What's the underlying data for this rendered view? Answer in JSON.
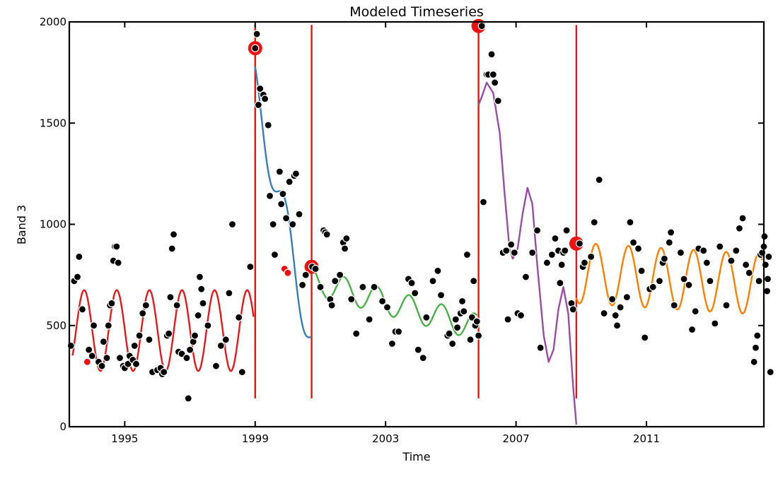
{
  "chart_data": {
    "type": "scatter",
    "title": "Modeled Timeseries",
    "xlabel": "Time",
    "ylabel": "Band 3",
    "xlim": [
      1993.3,
      2014.6
    ],
    "ylim": [
      0,
      2000
    ],
    "xticks": [
      1995,
      1999,
      2003,
      2007,
      2011
    ],
    "xtick_labels": [
      "1995",
      "1999",
      "2003",
      "2007",
      "2011"
    ],
    "yticks": [
      0,
      500,
      1000,
      1500,
      2000
    ],
    "ytick_labels": [
      "0",
      "500",
      "1000",
      "1500",
      "2000"
    ],
    "breaks": [
      {
        "x": 1999.0,
        "y": 1870
      },
      {
        "x": 2000.73,
        "y": 790
      },
      {
        "x": 2005.85,
        "y": 1980
      },
      {
        "x": 2008.85,
        "y": 905
      }
    ],
    "break_line_ymin": 140,
    "break_line_ymax": 1985,
    "outliers": [
      [
        1993.85,
        320
      ],
      [
        1999.9,
        780
      ],
      [
        2000.0,
        760
      ]
    ],
    "segments": [
      {
        "color": "#e41a1c",
        "start": 1993.4,
        "end": 1998.95,
        "model": "harmonic",
        "base": 475,
        "slope": 0,
        "amp": 200,
        "phase": 5.62
      },
      {
        "color": "#377eb8",
        "start": 1999.0,
        "end": 2000.7,
        "model": "harmonic",
        "base": 1665,
        "slope": -720,
        "amp": 120,
        "phase": 1.9
      },
      {
        "color": "#4daf4a",
        "start": 2000.73,
        "end": 2005.8,
        "model": "harmonic",
        "base": 720,
        "slope": -45,
        "amp": 65,
        "phase": 1.6
      },
      {
        "color": "#984ea3",
        "start": 2005.85,
        "end": 2008.4,
        "model": "polyline",
        "points": [
          [
            2005.85,
            1590
          ],
          [
            2005.95,
            1630
          ],
          [
            2006.1,
            1700
          ],
          [
            2006.3,
            1650
          ],
          [
            2006.5,
            1450
          ],
          [
            2006.65,
            1150
          ],
          [
            2006.8,
            880
          ],
          [
            2006.9,
            830
          ],
          [
            2007.05,
            880
          ],
          [
            2007.2,
            1050
          ],
          [
            2007.35,
            1180
          ],
          [
            2007.5,
            1100
          ],
          [
            2007.65,
            800
          ],
          [
            2007.85,
            450
          ],
          [
            2008.0,
            320
          ],
          [
            2008.15,
            380
          ],
          [
            2008.3,
            580
          ],
          [
            2008.45,
            690
          ],
          [
            2008.6,
            560
          ],
          [
            2008.75,
            200
          ],
          [
            2008.85,
            10
          ]
        ]
      },
      {
        "color": "#ff7f00",
        "start": 2008.85,
        "end": 2014.55,
        "model": "harmonic",
        "base": 760,
        "slope": -10,
        "amp": 150,
        "phase": 4.1
      }
    ],
    "points": [
      [
        1993.35,
        400
      ],
      [
        1993.45,
        720
      ],
      [
        1993.55,
        740
      ],
      [
        1993.6,
        840
      ],
      [
        1993.7,
        580
      ],
      [
        1993.9,
        380
      ],
      [
        1994.0,
        350
      ],
      [
        1994.05,
        500
      ],
      [
        1994.2,
        320
      ],
      [
        1994.3,
        300
      ],
      [
        1994.35,
        420
      ],
      [
        1994.45,
        340
      ],
      [
        1994.5,
        500
      ],
      [
        1994.55,
        600
      ],
      [
        1994.6,
        610
      ],
      [
        1994.65,
        820
      ],
      [
        1994.7,
        890
      ],
      [
        1994.75,
        890
      ],
      [
        1994.8,
        810
      ],
      [
        1994.85,
        340
      ],
      [
        1994.95,
        300
      ],
      [
        1995.0,
        290
      ],
      [
        1995.1,
        310
      ],
      [
        1995.15,
        350
      ],
      [
        1995.25,
        330
      ],
      [
        1995.3,
        400
      ],
      [
        1995.35,
        310
      ],
      [
        1995.45,
        450
      ],
      [
        1995.55,
        560
      ],
      [
        1995.65,
        600
      ],
      [
        1995.75,
        430
      ],
      [
        1995.85,
        270
      ],
      [
        1996.0,
        280
      ],
      [
        1996.1,
        290
      ],
      [
        1996.15,
        260
      ],
      [
        1996.2,
        270
      ],
      [
        1996.3,
        450
      ],
      [
        1996.35,
        460
      ],
      [
        1996.4,
        640
      ],
      [
        1996.45,
        880
      ],
      [
        1996.5,
        950
      ],
      [
        1996.6,
        600
      ],
      [
        1996.65,
        370
      ],
      [
        1996.75,
        360
      ],
      [
        1996.9,
        340
      ],
      [
        1996.95,
        140
      ],
      [
        1997.0,
        380
      ],
      [
        1997.1,
        420
      ],
      [
        1997.15,
        450
      ],
      [
        1997.25,
        550
      ],
      [
        1997.3,
        740
      ],
      [
        1997.35,
        680
      ],
      [
        1997.4,
        610
      ],
      [
        1997.55,
        500
      ],
      [
        1997.8,
        300
      ],
      [
        1997.95,
        400
      ],
      [
        1998.1,
        430
      ],
      [
        1998.2,
        660
      ],
      [
        1998.3,
        1000
      ],
      [
        1998.5,
        540
      ],
      [
        1998.6,
        270
      ],
      [
        1998.85,
        790
      ],
      [
        1999.0,
        1870
      ],
      [
        1999.05,
        1940
      ],
      [
        1999.1,
        1590
      ],
      [
        1999.15,
        1670
      ],
      [
        1999.25,
        1640
      ],
      [
        1999.3,
        1620
      ],
      [
        1999.4,
        1490
      ],
      [
        1999.45,
        1140
      ],
      [
        1999.55,
        1000
      ],
      [
        1999.6,
        850
      ],
      [
        1999.75,
        1260
      ],
      [
        1999.8,
        1100
      ],
      [
        1999.85,
        1150
      ],
      [
        1999.95,
        1030
      ],
      [
        2000.05,
        1210
      ],
      [
        2000.15,
        1000
      ],
      [
        2000.2,
        1240
      ],
      [
        2000.25,
        1250
      ],
      [
        2000.35,
        1050
      ],
      [
        2000.45,
        700
      ],
      [
        2000.55,
        750
      ],
      [
        2000.75,
        790
      ],
      [
        2000.85,
        780
      ],
      [
        2001.0,
        690
      ],
      [
        2001.1,
        970
      ],
      [
        2001.15,
        960
      ],
      [
        2001.2,
        950
      ],
      [
        2001.3,
        630
      ],
      [
        2001.35,
        600
      ],
      [
        2001.45,
        720
      ],
      [
        2001.6,
        750
      ],
      [
        2001.7,
        910
      ],
      [
        2001.75,
        880
      ],
      [
        2001.8,
        930
      ],
      [
        2001.95,
        630
      ],
      [
        2002.1,
        460
      ],
      [
        2002.3,
        690
      ],
      [
        2002.5,
        530
      ],
      [
        2002.65,
        690
      ],
      [
        2002.9,
        620
      ],
      [
        2003.05,
        590
      ],
      [
        2003.2,
        410
      ],
      [
        2003.3,
        470
      ],
      [
        2003.4,
        470
      ],
      [
        2003.7,
        730
      ],
      [
        2003.8,
        710
      ],
      [
        2003.9,
        660
      ],
      [
        2004.0,
        380
      ],
      [
        2004.15,
        340
      ],
      [
        2004.25,
        540
      ],
      [
        2004.45,
        720
      ],
      [
        2004.6,
        770
      ],
      [
        2004.7,
        650
      ],
      [
        2004.9,
        450
      ],
      [
        2004.95,
        460
      ],
      [
        2005.05,
        410
      ],
      [
        2005.15,
        530
      ],
      [
        2005.2,
        490
      ],
      [
        2005.3,
        560
      ],
      [
        2005.35,
        620
      ],
      [
        2005.4,
        570
      ],
      [
        2005.5,
        850
      ],
      [
        2005.6,
        430
      ],
      [
        2005.65,
        540
      ],
      [
        2005.7,
        720
      ],
      [
        2005.75,
        500
      ],
      [
        2005.8,
        520
      ],
      [
        2005.85,
        450
      ],
      [
        2005.95,
        1980
      ],
      [
        2006.0,
        1110
      ],
      [
        2006.1,
        1740
      ],
      [
        2006.15,
        1740
      ],
      [
        2006.25,
        1840
      ],
      [
        2006.3,
        1740
      ],
      [
        2006.35,
        1700
      ],
      [
        2006.45,
        1610
      ],
      [
        2006.6,
        860
      ],
      [
        2006.7,
        870
      ],
      [
        2006.75,
        530
      ],
      [
        2006.85,
        900
      ],
      [
        2006.95,
        860
      ],
      [
        2007.05,
        560
      ],
      [
        2007.15,
        550
      ],
      [
        2007.3,
        740
      ],
      [
        2007.5,
        860
      ],
      [
        2007.65,
        970
      ],
      [
        2007.75,
        390
      ],
      [
        2007.95,
        810
      ],
      [
        2008.1,
        850
      ],
      [
        2008.2,
        930
      ],
      [
        2008.3,
        870
      ],
      [
        2008.35,
        710
      ],
      [
        2008.4,
        800
      ],
      [
        2008.45,
        860
      ],
      [
        2008.5,
        870
      ],
      [
        2008.55,
        970
      ],
      [
        2008.7,
        610
      ],
      [
        2008.75,
        580
      ],
      [
        2008.95,
        905
      ],
      [
        2009.05,
        790
      ],
      [
        2009.1,
        810
      ],
      [
        2009.3,
        840
      ],
      [
        2009.4,
        1010
      ],
      [
        2009.55,
        1220
      ],
      [
        2009.7,
        560
      ],
      [
        2009.95,
        630
      ],
      [
        2010.05,
        550
      ],
      [
        2010.1,
        500
      ],
      [
        2010.2,
        590
      ],
      [
        2010.4,
        640
      ],
      [
        2010.5,
        1010
      ],
      [
        2010.6,
        910
      ],
      [
        2010.75,
        880
      ],
      [
        2010.85,
        770
      ],
      [
        2010.95,
        440
      ],
      [
        2011.1,
        680
      ],
      [
        2011.2,
        690
      ],
      [
        2011.4,
        720
      ],
      [
        2011.5,
        810
      ],
      [
        2011.55,
        830
      ],
      [
        2011.7,
        910
      ],
      [
        2011.75,
        960
      ],
      [
        2011.85,
        600
      ],
      [
        2012.05,
        860
      ],
      [
        2012.15,
        730
      ],
      [
        2012.3,
        700
      ],
      [
        2012.4,
        480
      ],
      [
        2012.5,
        570
      ],
      [
        2012.6,
        880
      ],
      [
        2012.75,
        870
      ],
      [
        2012.85,
        810
      ],
      [
        2012.95,
        720
      ],
      [
        2013.1,
        510
      ],
      [
        2013.25,
        890
      ],
      [
        2013.45,
        600
      ],
      [
        2013.6,
        820
      ],
      [
        2013.75,
        870
      ],
      [
        2013.85,
        980
      ],
      [
        2013.95,
        1030
      ],
      [
        2014.05,
        800
      ],
      [
        2014.15,
        760
      ],
      [
        2014.3,
        320
      ],
      [
        2014.35,
        390
      ],
      [
        2014.4,
        450
      ],
      [
        2014.45,
        720
      ],
      [
        2014.5,
        850
      ],
      [
        2014.55,
        860
      ],
      [
        2014.6,
        890
      ],
      [
        2014.62,
        940
      ],
      [
        2014.65,
        800
      ],
      [
        2014.7,
        670
      ],
      [
        2014.72,
        730
      ],
      [
        2014.75,
        840
      ],
      [
        2014.8,
        270
      ]
    ]
  }
}
